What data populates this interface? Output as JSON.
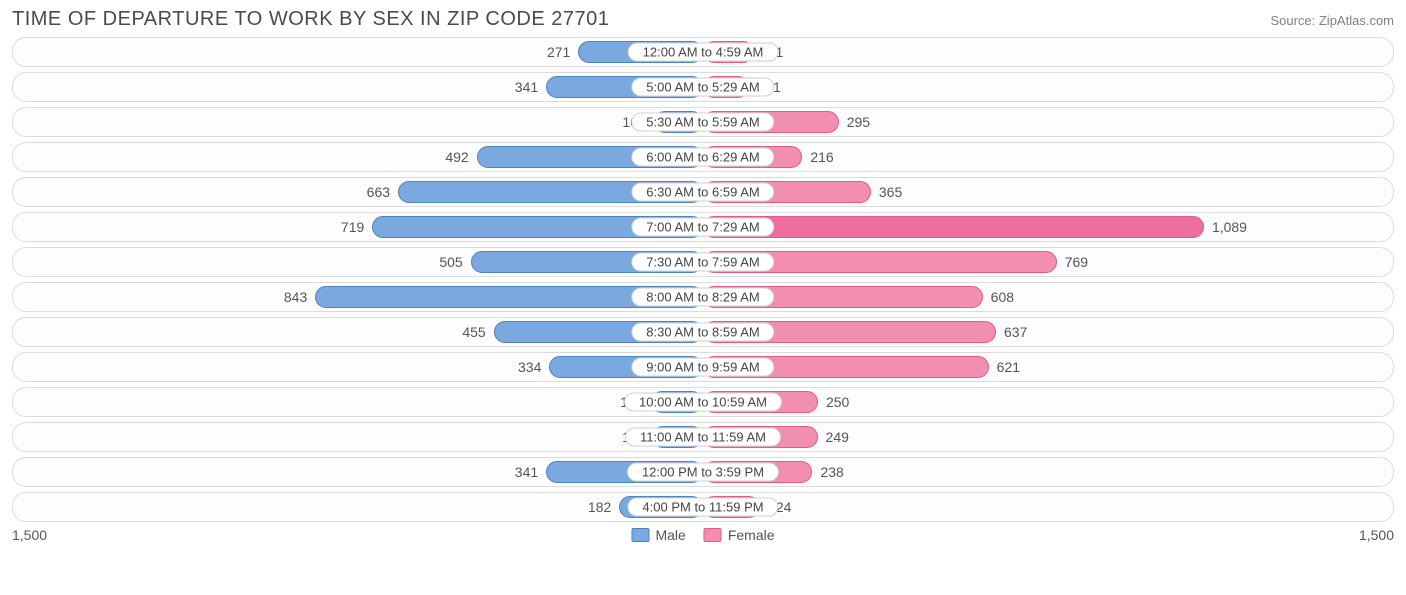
{
  "title": "TIME OF DEPARTURE TO WORK BY SEX IN ZIP CODE 27701",
  "source": "Source: ZipAtlas.com",
  "axis_max": 1500,
  "axis_left_label": "1,500",
  "axis_right_label": "1,500",
  "legend": {
    "male": "Male",
    "female": "Female"
  },
  "colors": {
    "male_fill": "#7aa9e0",
    "male_border": "#4f81bd",
    "female_fill": "#f28fb1",
    "female_border": "#e05a8a",
    "female_accent_fill": "#ef6ea0",
    "row_border": "#dcdcdc",
    "text": "#555555",
    "title_text": "#4a4a4a",
    "source_text": "#808080",
    "background": "#ffffff"
  },
  "accent_row_index": 5,
  "rows": [
    {
      "category": "12:00 AM to 4:59 AM",
      "male": 271,
      "female": 111,
      "male_label": "271",
      "female_label": "111"
    },
    {
      "category": "5:00 AM to 5:29 AM",
      "male": 341,
      "female": 101,
      "male_label": "341",
      "female_label": "101"
    },
    {
      "category": "5:30 AM to 5:59 AM",
      "male": 107,
      "female": 295,
      "male_label": "107",
      "female_label": "295"
    },
    {
      "category": "6:00 AM to 6:29 AM",
      "male": 492,
      "female": 216,
      "male_label": "492",
      "female_label": "216"
    },
    {
      "category": "6:30 AM to 6:59 AM",
      "male": 663,
      "female": 365,
      "male_label": "663",
      "female_label": "365"
    },
    {
      "category": "7:00 AM to 7:29 AM",
      "male": 719,
      "female": 1089,
      "male_label": "719",
      "female_label": "1,089"
    },
    {
      "category": "7:30 AM to 7:59 AM",
      "male": 505,
      "female": 769,
      "male_label": "505",
      "female_label": "769"
    },
    {
      "category": "8:00 AM to 8:29 AM",
      "male": 843,
      "female": 608,
      "male_label": "843",
      "female_label": "608"
    },
    {
      "category": "8:30 AM to 8:59 AM",
      "male": 455,
      "female": 637,
      "male_label": "455",
      "female_label": "637"
    },
    {
      "category": "9:00 AM to 9:59 AM",
      "male": 334,
      "female": 621,
      "male_label": "334",
      "female_label": "621"
    },
    {
      "category": "10:00 AM to 10:59 AM",
      "male": 114,
      "female": 250,
      "male_label": "114",
      "female_label": "250"
    },
    {
      "category": "11:00 AM to 11:59 AM",
      "male": 110,
      "female": 249,
      "male_label": "110",
      "female_label": "249"
    },
    {
      "category": "12:00 PM to 3:59 PM",
      "male": 341,
      "female": 238,
      "male_label": "341",
      "female_label": "238"
    },
    {
      "category": "4:00 PM to 11:59 PM",
      "male": 182,
      "female": 124,
      "male_label": "182",
      "female_label": "124"
    }
  ]
}
